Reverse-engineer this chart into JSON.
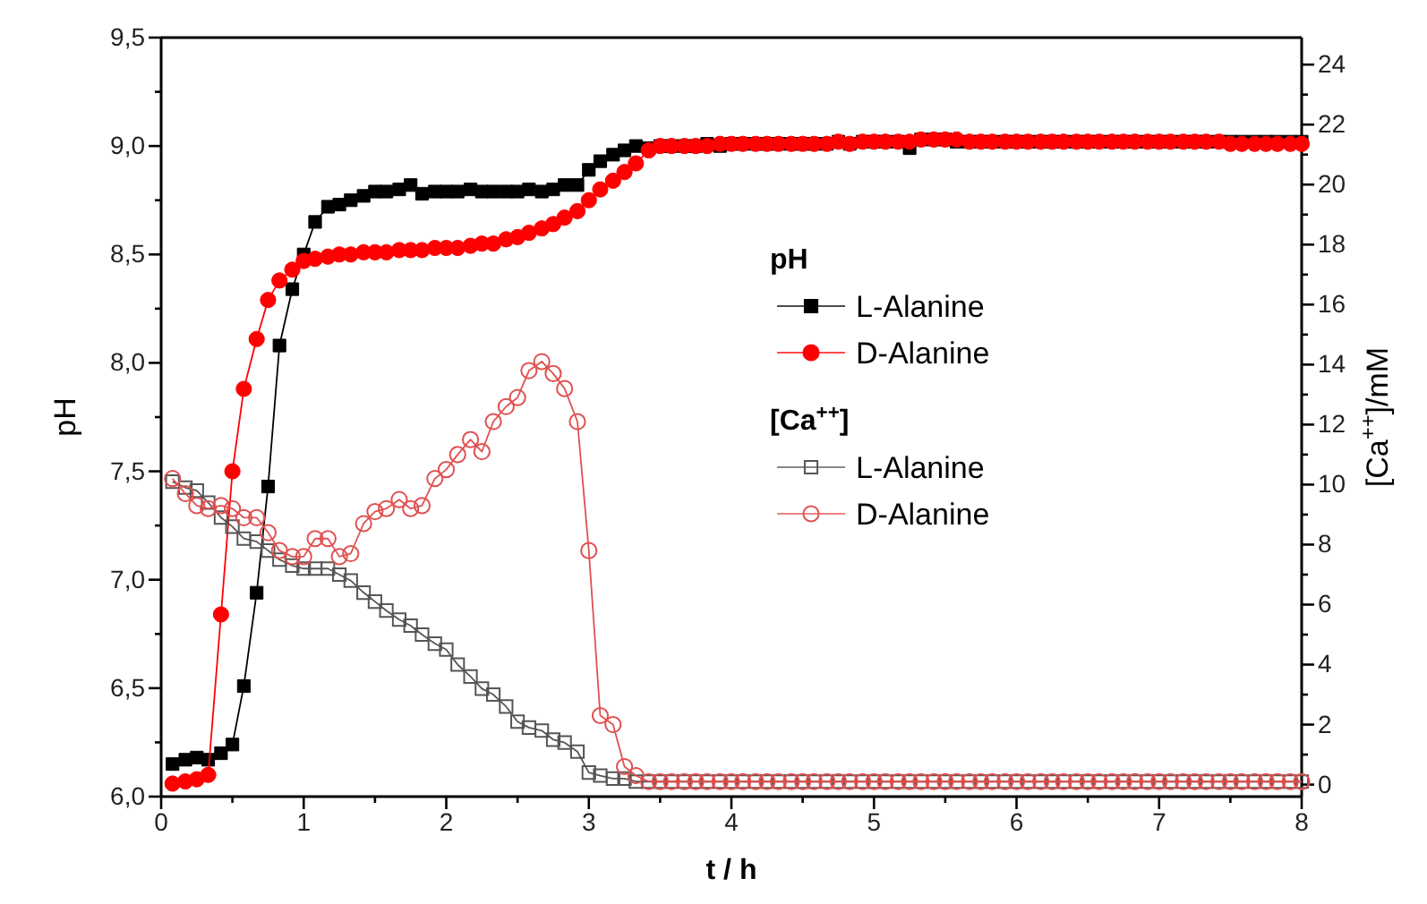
{
  "chart_data": {
    "type": "line",
    "xlabel": "t / h",
    "ylabel": "pH",
    "y2label": "[Ca$^{++}$]/mM",
    "annotations": [
      "pH",
      "[Ca$^{++}$]"
    ],
    "x": [
      0.08,
      0.17,
      0.25,
      0.33,
      0.42,
      0.5,
      0.58,
      0.67,
      0.75,
      0.83,
      0.92,
      1,
      1.08,
      1.17,
      1.25,
      1.33,
      1.42,
      1.5,
      1.58,
      1.67,
      1.75,
      1.83,
      1.92,
      2,
      2.08,
      2.17,
      2.25,
      2.33,
      2.42,
      2.5,
      2.58,
      2.67,
      2.75,
      2.83,
      2.92,
      3,
      3.08,
      3.17,
      3.25,
      3.33,
      3.42,
      3.5,
      3.58,
      3.67,
      3.75,
      3.83,
      3.92,
      4,
      4.08,
      4.17,
      4.25,
      4.33,
      4.42,
      4.5,
      4.58,
      4.67,
      4.75,
      4.83,
      4.92,
      5,
      5.08,
      5.17,
      5.25,
      5.33,
      5.42,
      5.5,
      5.58,
      5.67,
      5.75,
      5.83,
      5.92,
      6,
      6.08,
      6.17,
      6.25,
      6.33,
      6.42,
      6.5,
      6.58,
      6.67,
      6.75,
      6.83,
      6.92,
      7,
      7.08,
      7.17,
      7.25,
      7.33,
      7.42,
      7.5,
      7.58,
      7.67,
      7.75,
      7.83,
      7.92,
      8
    ],
    "series": [
      {
        "name": "L-Alanine",
        "color": "#000000",
        "marker": "square",
        "values": [
          6.15,
          6.17,
          6.18,
          6.17,
          6.2,
          6.24,
          6.51,
          6.94,
          7.43,
          8.08,
          8.34,
          8.5,
          8.65,
          8.72,
          8.73,
          8.75,
          8.77,
          8.79,
          8.79,
          8.8,
          8.82,
          8.78,
          8.79,
          8.79,
          8.79,
          8.8,
          8.79,
          8.79,
          8.79,
          8.79,
          8.8,
          8.79,
          8.8,
          8.82,
          8.82,
          8.89,
          8.93,
          8.96,
          8.98,
          9.0,
          8.99,
          9.0,
          9.0,
          9.0,
          9.0,
          9.01,
          9.0,
          9.01,
          9.01,
          9.01,
          9.01,
          9.01,
          9.01,
          9.01,
          9.01,
          9.01,
          9.02,
          9.01,
          9.02,
          9.02,
          9.02,
          9.02,
          8.99,
          9.03,
          9.03,
          9.03,
          9.02,
          9.02,
          9.02,
          9.02,
          9.02,
          9.02,
          9.02,
          9.02,
          9.02,
          9.02,
          9.02,
          9.02,
          9.02,
          9.02,
          9.02,
          9.02,
          9.02,
          9.02,
          9.02,
          9.02,
          9.02,
          9.02,
          9.02,
          9.02,
          9.02,
          9.02,
          9.02,
          9.02,
          9.02,
          9.02
        ]
      },
      {
        "name": "D-Alanine",
        "color": "#ff0000",
        "marker": "circle",
        "values": [
          6.06,
          6.07,
          6.08,
          6.1,
          6.84,
          7.5,
          7.88,
          8.11,
          8.29,
          8.38,
          8.43,
          8.47,
          8.48,
          8.49,
          8.5,
          8.5,
          8.51,
          8.51,
          8.51,
          8.52,
          8.52,
          8.52,
          8.53,
          8.53,
          8.53,
          8.54,
          8.55,
          8.55,
          8.57,
          8.58,
          8.6,
          8.62,
          8.64,
          8.67,
          8.7,
          8.75,
          8.8,
          8.84,
          8.88,
          8.92,
          8.98,
          9.0,
          9.0,
          9.0,
          9.0,
          9.0,
          9.01,
          9.01,
          9.01,
          9.01,
          9.01,
          9.01,
          9.01,
          9.01,
          9.01,
          9.01,
          9.02,
          9.01,
          9.02,
          9.02,
          9.02,
          9.02,
          9.02,
          9.03,
          9.03,
          9.03,
          9.03,
          9.02,
          9.02,
          9.02,
          9.02,
          9.02,
          9.02,
          9.02,
          9.02,
          9.02,
          9.02,
          9.02,
          9.02,
          9.02,
          9.02,
          9.02,
          9.02,
          9.02,
          9.02,
          9.02,
          9.02,
          9.02,
          9.02,
          9.01,
          9.01,
          9.01,
          9.01,
          9.01,
          9.01,
          9.01
        ]
      },
      {
        "name": "L-Alanine",
        "color": "#555555",
        "marker": "square",
        "axis": "y2",
        "values": [
          10.1,
          9.9,
          9.8,
          9.4,
          8.9,
          8.6,
          8.2,
          8.1,
          7.8,
          7.5,
          7.3,
          7.2,
          7.2,
          7.2,
          7.0,
          6.8,
          6.4,
          6.1,
          5.8,
          5.5,
          5.3,
          5.0,
          4.7,
          4.5,
          4.0,
          3.6,
          3.2,
          3.0,
          2.6,
          2.1,
          1.9,
          1.8,
          1.5,
          1.4,
          1.1,
          0.4,
          0.3,
          0.2,
          0.2,
          0.1,
          0.1,
          0.1,
          0.1,
          0.1,
          0.1,
          0.1,
          0.1,
          0.1,
          0.1,
          0.1,
          0.1,
          0.1,
          0.1,
          0.1,
          0.1,
          0.1,
          0.1,
          0.1,
          0.1,
          0.1,
          0.1,
          0.1,
          0.1,
          0.1,
          0.1,
          0.1,
          0.1,
          0.1,
          0.1,
          0.1,
          0.1,
          0.1,
          0.1,
          0.1,
          0.1,
          0.1,
          0.1,
          0.1,
          0.1,
          0.1,
          0.1,
          0.1,
          0.1,
          0.1,
          0.1,
          0.1,
          0.1,
          0.1,
          0.1,
          0.1,
          0.1,
          0.1,
          0.1,
          0.1,
          0.1,
          0.1
        ]
      },
      {
        "name": "D-Alanine",
        "color": "#e05050",
        "marker": "circle",
        "axis": "y2",
        "values": [
          10.2,
          9.7,
          9.3,
          9.2,
          9.3,
          9.2,
          8.9,
          8.9,
          8.4,
          7.8,
          7.6,
          7.6,
          8.2,
          8.2,
          7.6,
          7.7,
          8.7,
          9.1,
          9.2,
          9.5,
          9.2,
          9.3,
          10.2,
          10.5,
          11.0,
          11.5,
          11.1,
          12.1,
          12.6,
          12.9,
          13.8,
          14.1,
          13.7,
          13.2,
          12.1,
          7.8,
          2.3,
          2.0,
          0.6,
          0.3,
          0.1,
          0.1,
          0.1,
          0.1,
          0.1,
          0.1,
          0.1,
          0.1,
          0.1,
          0.1,
          0.1,
          0.1,
          0.1,
          0.1,
          0.1,
          0.1,
          0.1,
          0.1,
          0.1,
          0.1,
          0.1,
          0.1,
          0.1,
          0.1,
          0.1,
          0.1,
          0.1,
          0.1,
          0.1,
          0.1,
          0.1,
          0.1,
          0.1,
          0.1,
          0.1,
          0.1,
          0.1,
          0.1,
          0.1,
          0.1,
          0.1,
          0.1,
          0.1,
          0.1,
          0.1,
          0.1,
          0.1,
          0.1,
          0.1,
          0.1,
          0.1,
          0.1,
          0.1,
          0.1,
          0.1,
          0.1
        ]
      }
    ],
    "xlim": [
      0,
      8
    ],
    "xticks": [
      0,
      {
        "value": 0.5,
        "label": null
      },
      1,
      {
        "value": 1.5,
        "label": null
      },
      2,
      {
        "value": 2.5,
        "label": null
      },
      3,
      {
        "value": 3.5,
        "label": null
      },
      4,
      {
        "value": 4.5,
        "label": null
      },
      5,
      {
        "value": 5.5,
        "label": null
      },
      6,
      {
        "value": 6.5,
        "label": null
      },
      7,
      {
        "value": 7.5,
        "label": null
      },
      8
    ],
    "ylim": [
      6.0,
      9.5
    ],
    "yticks": [
      {
        "value": 6.0,
        "label": "6,0"
      },
      {
        "value": 6.25,
        "label": null
      },
      {
        "value": 6.5,
        "label": "6,5"
      },
      {
        "value": 6.75,
        "label": null
      },
      {
        "value": 7.0,
        "label": "7,0"
      },
      {
        "value": 7.25,
        "label": null
      },
      {
        "value": 7.5,
        "label": "7,5"
      },
      {
        "value": 7.75,
        "label": null
      },
      {
        "value": 8.0,
        "label": "8,0"
      },
      {
        "value": 8.25,
        "label": null
      },
      {
        "value": 8.5,
        "label": "8,5"
      },
      {
        "value": 8.75,
        "label": null
      },
      {
        "value": 9.0,
        "label": "9,0"
      },
      {
        "value": 9.25,
        "label": null
      },
      {
        "value": 9.5,
        "label": "9,5"
      }
    ],
    "y2lim": [
      -0.4,
      24.9
    ],
    "y2ticks": [
      0,
      {
        "value": 1,
        "label": null
      },
      2,
      {
        "value": 3,
        "label": null
      },
      4,
      {
        "value": 5,
        "label": null
      },
      6,
      {
        "value": 7,
        "label": null
      },
      8,
      {
        "value": 9,
        "label": null
      },
      10,
      {
        "value": 11,
        "label": null
      },
      12,
      {
        "value": 13,
        "label": null
      },
      14,
      {
        "value": 15,
        "label": null
      },
      16,
      {
        "value": 17,
        "label": null
      },
      18,
      {
        "value": 19,
        "label": null
      },
      20,
      {
        "value": 21,
        "label": null
      },
      22,
      {
        "value": 23,
        "label": null
      },
      24
    ],
    "legend": "right",
    "line_style": "solid",
    "grid": false
  }
}
